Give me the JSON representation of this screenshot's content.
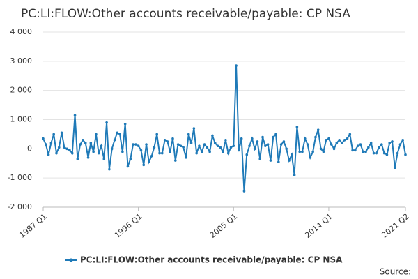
{
  "chart_data": {
    "type": "line",
    "title": "PC:LI:FLOW:Other accounts receivable/payable: CP NSA",
    "source": "Source:",
    "x": [
      "1987 Q1",
      null,
      null,
      null,
      null,
      null,
      null,
      null,
      null,
      null,
      null,
      null,
      null,
      null,
      null,
      null,
      null,
      null,
      null,
      null,
      null,
      null,
      null,
      null,
      null,
      null,
      null,
      null,
      null,
      null,
      null,
      null,
      null,
      null,
      null,
      null,
      "1996 Q1",
      null,
      null,
      null,
      null,
      null,
      null,
      null,
      null,
      null,
      null,
      null,
      null,
      null,
      null,
      null,
      null,
      null,
      null,
      null,
      null,
      null,
      null,
      null,
      null,
      null,
      null,
      null,
      null,
      null,
      null,
      null,
      null,
      null,
      null,
      null,
      "2005 Q1",
      null,
      null,
      null,
      null,
      null,
      null,
      null,
      null,
      null,
      null,
      null,
      null,
      null,
      null,
      null,
      null,
      null,
      null,
      null,
      null,
      null,
      null,
      null,
      null,
      null,
      null,
      null,
      null,
      null,
      null,
      null,
      null,
      null,
      null,
      null,
      "2014 Q1",
      null,
      null,
      null,
      null,
      null,
      null,
      null,
      null,
      null,
      null,
      null,
      null,
      null,
      null,
      null,
      null,
      null,
      null,
      null,
      null,
      null,
      null,
      null,
      null,
      null,
      null,
      null,
      null,
      "2021 Q2"
    ],
    "series": [
      {
        "name": "PC:LI:FLOW:Other accounts receivable/payable: CP NSA",
        "color": "#1f7ab8",
        "values": [
          350,
          150,
          -200,
          200,
          500,
          -150,
          50,
          550,
          50,
          0,
          -50,
          -150,
          1150,
          -350,
          150,
          300,
          200,
          -300,
          200,
          -100,
          500,
          -150,
          100,
          -350,
          900,
          -700,
          0,
          300,
          550,
          500,
          -100,
          850,
          -600,
          -350,
          150,
          150,
          100,
          -50,
          -550,
          150,
          -450,
          -250,
          50,
          500,
          -150,
          -150,
          300,
          250,
          -100,
          350,
          -400,
          150,
          100,
          50,
          -300,
          500,
          200,
          700,
          -150,
          100,
          -100,
          150,
          50,
          -100,
          450,
          200,
          100,
          50,
          -100,
          300,
          -150,
          50,
          100,
          2850,
          -50,
          350,
          -1450,
          -200,
          100,
          350,
          0,
          250,
          -350,
          400,
          100,
          150,
          -400,
          400,
          500,
          -450,
          150,
          250,
          0,
          -400,
          -200,
          -900,
          750,
          -100,
          -100,
          350,
          150,
          -300,
          -100,
          400,
          650,
          0,
          -100,
          300,
          350,
          150,
          0,
          200,
          300,
          200,
          300,
          350,
          500,
          -50,
          -50,
          100,
          150,
          -100,
          -100,
          50,
          200,
          -150,
          -150,
          50,
          150,
          -150,
          -200,
          200,
          250,
          -650,
          -150,
          150,
          300,
          -200
        ]
      }
    ],
    "ylim": [
      -2000,
      4000
    ],
    "yticks": [
      {
        "value": -2000,
        "label": "-2 000"
      },
      {
        "value": -1000,
        "label": "-1 000"
      },
      0,
      {
        "value": 1000,
        "label": "1 000"
      },
      {
        "value": 2000,
        "label": "2 000"
      },
      {
        "value": 3000,
        "label": "3 000"
      },
      {
        "value": 4000,
        "label": "4 000"
      }
    ],
    "grid": true
  }
}
